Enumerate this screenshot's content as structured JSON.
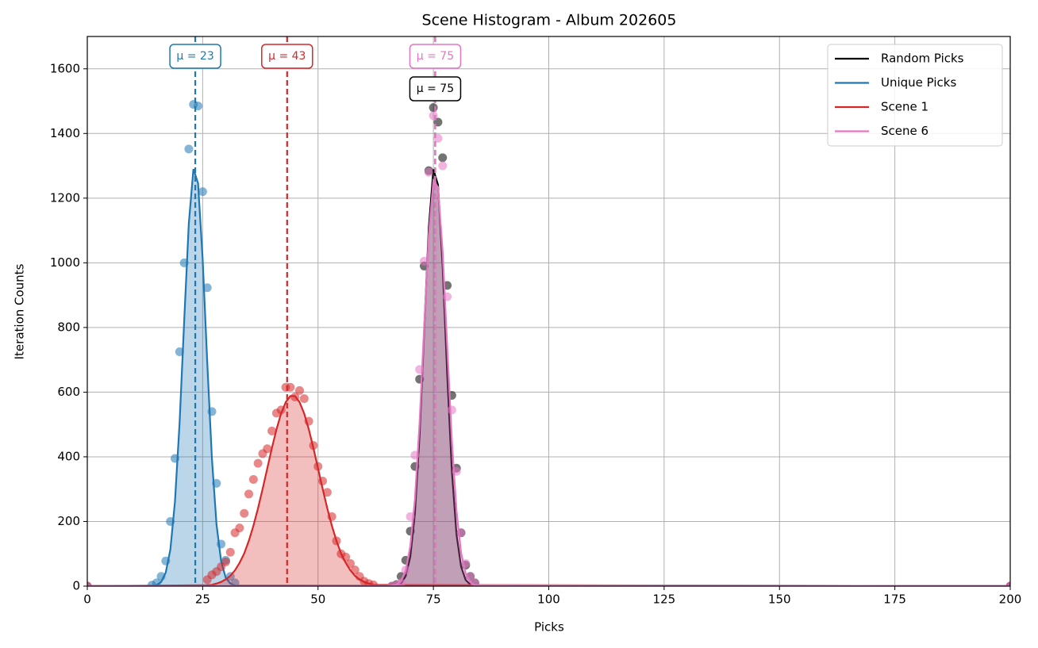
{
  "chart_data": {
    "type": "line",
    "title": "Scene Histogram - Album 202605",
    "x_label": "Picks",
    "y_label": "Iteration Counts",
    "xlim": [
      0,
      200
    ],
    "ylim": [
      0,
      1700
    ],
    "xticks": [
      0,
      25,
      50,
      75,
      100,
      125,
      150,
      175,
      200
    ],
    "yticks": [
      0,
      200,
      400,
      600,
      800,
      1000,
      1200,
      1400,
      1600
    ],
    "grid": true,
    "legend": "upper right",
    "series": [
      {
        "name": "Random Picks",
        "color": "#000000",
        "x": [
          0,
          66,
          67,
          68,
          69,
          70,
          71,
          72,
          73,
          74,
          75,
          76,
          77,
          78,
          79,
          80,
          81,
          82,
          83,
          84,
          200
        ],
        "values": [
          0,
          0,
          5,
          30,
          80,
          170,
          370,
          640,
          990,
          1285,
          1480,
          1435,
          1325,
          930,
          590,
          365,
          165,
          65,
          30,
          10,
          0
        ],
        "fit": [
          0,
          0,
          2,
          8,
          31,
          91,
          226,
          464,
          789,
          1108,
          1289,
          1241,
          989,
          653,
          356,
          161,
          60,
          19,
          5,
          1,
          0
        ],
        "mean": 75.4,
        "mean_label": "μ = 75"
      },
      {
        "name": "Unique Picks",
        "color": "#1f77b4",
        "x": [
          0,
          14,
          15,
          16,
          17,
          18,
          19,
          20,
          21,
          22,
          23,
          24,
          25,
          26,
          27,
          28,
          29,
          30,
          31,
          32,
          200
        ],
        "values": [
          0,
          3,
          10,
          30,
          78,
          200,
          395,
          725,
          1000,
          1352,
          1490,
          1485,
          1220,
          923,
          540,
          318,
          130,
          80,
          30,
          10,
          0
        ],
        "fit": [
          0,
          1,
          3,
          13,
          42,
          113,
          262,
          505,
          821,
          1122,
          1290,
          1246,
          1011,
          690,
          396,
          191,
          77,
          26,
          8,
          2,
          0
        ],
        "mean": 23.4,
        "mean_label": "μ = 23"
      },
      {
        "name": "Scene 1",
        "color": "#d62728",
        "x": [
          0,
          26,
          27,
          28,
          29,
          30,
          31,
          32,
          33,
          34,
          35,
          36,
          37,
          38,
          39,
          40,
          41,
          42,
          43,
          44,
          45,
          46,
          47,
          48,
          49,
          50,
          51,
          52,
          53,
          54,
          55,
          56,
          57,
          58,
          59,
          60,
          61,
          62,
          200
        ],
        "values": [
          0,
          20,
          35,
          45,
          60,
          75,
          105,
          165,
          180,
          225,
          285,
          330,
          380,
          410,
          425,
          480,
          535,
          545,
          615,
          615,
          585,
          605,
          580,
          510,
          435,
          370,
          325,
          290,
          215,
          140,
          100,
          90,
          70,
          50,
          30,
          15,
          8,
          4,
          0
        ],
        "fit": [
          0,
          3,
          4,
          8,
          13,
          21,
          32,
          49,
          72,
          101,
          140,
          187,
          241,
          301,
          364,
          427,
          485,
          534,
          569,
          588,
          588,
          569,
          534,
          485,
          427,
          364,
          301,
          241,
          187,
          140,
          101,
          72,
          49,
          32,
          21,
          13,
          8,
          4,
          0
        ],
        "mean": 43.3,
        "mean_label": "μ = 43"
      },
      {
        "name": "Scene 6",
        "color": "#e377c2",
        "x": [
          0,
          66,
          67,
          68,
          69,
          70,
          71,
          72,
          73,
          74,
          75,
          76,
          77,
          78,
          79,
          80,
          81,
          82,
          83,
          84,
          200
        ],
        "values": [
          0,
          0,
          3,
          10,
          50,
          215,
          405,
          670,
          1005,
          1280,
          1455,
          1385,
          1300,
          895,
          545,
          355,
          165,
          70,
          30,
          10,
          0
        ],
        "fit": [
          0,
          1,
          4,
          16,
          48,
          124,
          269,
          504,
          802,
          1086,
          1254,
          1234,
          1035,
          740,
          450,
          234,
          103,
          39,
          12,
          3,
          0
        ],
        "mean": 75.4,
        "mean_label": "μ = 75"
      }
    ]
  }
}
